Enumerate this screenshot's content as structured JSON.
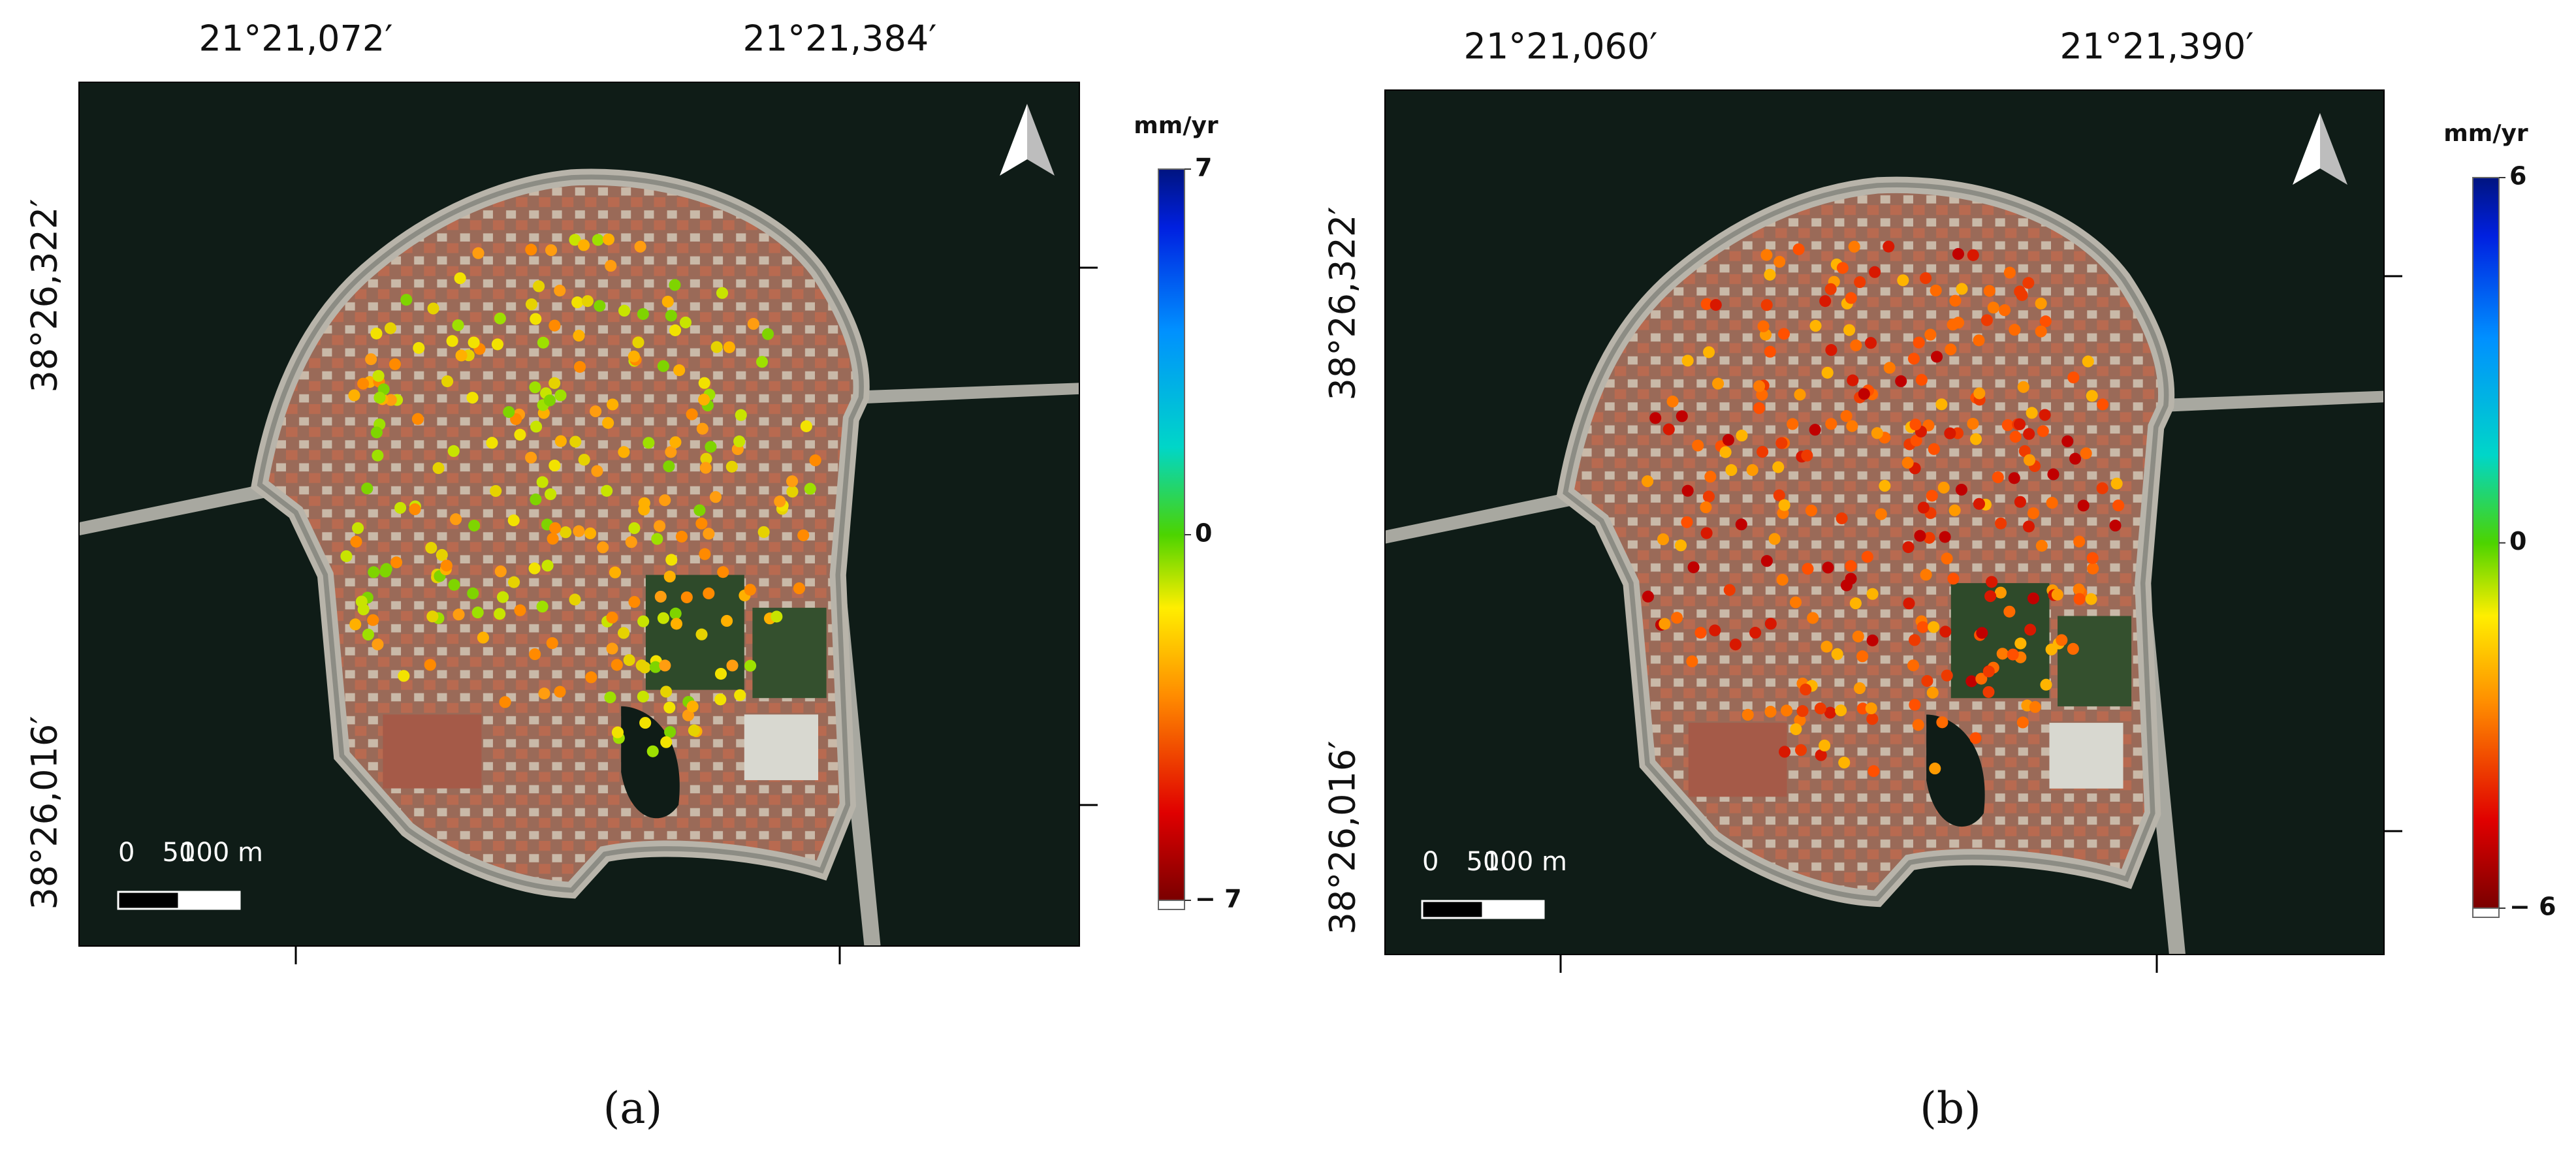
{
  "panels": [
    {
      "label": "(a)",
      "top_coords": [
        "21°21,072′",
        "21°21,384′"
      ],
      "left_coords": [
        "38°26,322′",
        "38°26,016′"
      ],
      "colorbar": {
        "title": "mm/yr",
        "lim": [
          -7,
          7
        ],
        "ticks": [
          7,
          0,
          {
            "value": -7,
            "label": "− 7"
          }
        ]
      },
      "scale_bar": [
        "0",
        "50",
        "100 m"
      ]
    },
    {
      "label": "(b)",
      "top_coords": [
        "21°21,060′",
        "21°21,390′"
      ],
      "left_coords": [
        "38°26,322′",
        "38°26,016′"
      ],
      "colorbar": {
        "title": "mm/yr",
        "lim": [
          -6,
          6
        ],
        "ticks": [
          6,
          0,
          {
            "value": -6,
            "label": "− 6"
          }
        ]
      },
      "scale_bar": [
        "0",
        "50",
        "100 m"
      ]
    }
  ]
}
